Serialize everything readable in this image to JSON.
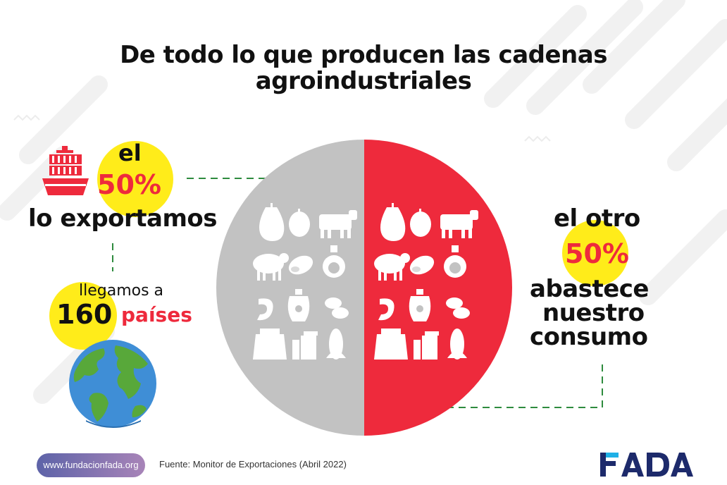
{
  "title": {
    "line1": "De todo lo que producen las cadenas",
    "line2": "agroindustriales"
  },
  "left": {
    "el": "el",
    "percent": "50%",
    "verb": "lo exportamos",
    "reach_intro": "llegamos a",
    "countries_number": "160",
    "countries_label": "países",
    "icons": [
      "cargo-ship-icon",
      "globe-icon"
    ]
  },
  "right": {
    "line1": "el otro",
    "percent": "50%",
    "line2": "abastece",
    "line3": "nuestro",
    "line4": "consumo"
  },
  "circle": {
    "left_color": "#c2c2c2",
    "right_color": "#ee2a3c",
    "split_fraction": 0.5,
    "icons": [
      "pear-icon",
      "lemon-icon",
      "cow-icon",
      "sheep-icon",
      "peanut-icon",
      "oil-bottle-icon",
      "shrimp-icon",
      "olive-oil-jar-icon",
      "beans-icon",
      "flour-sack-icon",
      "milk-products-icon",
      "corn-icon"
    ]
  },
  "colors": {
    "accent_red": "#ee2a3c",
    "highlight_yellow": "#ffec1a",
    "dash_green": "#2e8b3e",
    "logo_navy": "#1d2a6b",
    "logo_cyan": "#1fb0e6"
  },
  "footer": {
    "website": "www.fundacionfada.org",
    "source": "Fuente: Monitor de Exportaciones (Abril 2022)",
    "logo_text": "FADA"
  }
}
